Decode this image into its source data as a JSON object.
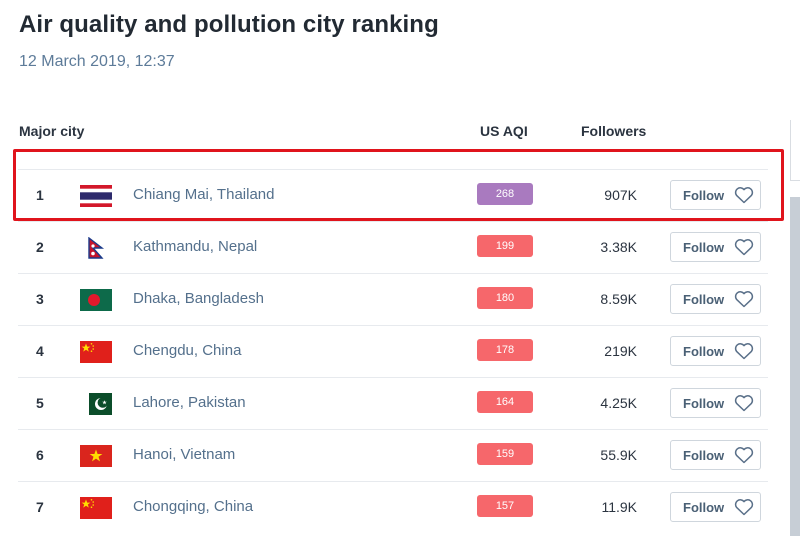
{
  "page": {
    "title": "Air quality and pollution city ranking",
    "timestamp": "12 March 2019, 12:37"
  },
  "columns": {
    "city": "Major city",
    "aqi": "US AQI",
    "followers": "Followers"
  },
  "rows": [
    {
      "rank": "1",
      "flag": "thailand-flag",
      "city": "Chiang Mai, Thailand",
      "aqi": "268",
      "aqi_color": "#a97abf",
      "followers": "907K",
      "follow_label": "Follow"
    },
    {
      "rank": "2",
      "flag": "nepal-flag",
      "city": "Kathmandu, Nepal",
      "aqi": "199",
      "aqi_color": "#f6676b",
      "followers": "3.38K",
      "follow_label": "Follow"
    },
    {
      "rank": "3",
      "flag": "bangladesh-flag",
      "city": "Dhaka, Bangladesh",
      "aqi": "180",
      "aqi_color": "#f6676b",
      "followers": "8.59K",
      "follow_label": "Follow"
    },
    {
      "rank": "4",
      "flag": "china-flag",
      "city": "Chengdu, China",
      "aqi": "178",
      "aqi_color": "#f6676b",
      "followers": "219K",
      "follow_label": "Follow"
    },
    {
      "rank": "5",
      "flag": "pakistan-flag",
      "city": "Lahore, Pakistan",
      "aqi": "164",
      "aqi_color": "#f6676b",
      "followers": "4.25K",
      "follow_label": "Follow"
    },
    {
      "rank": "6",
      "flag": "vietnam-flag",
      "city": "Hanoi, Vietnam",
      "aqi": "159",
      "aqi_color": "#f6676b",
      "followers": "55.9K",
      "follow_label": "Follow"
    },
    {
      "rank": "7",
      "flag": "china-flag",
      "city": "Chongqing, China",
      "aqi": "157",
      "aqi_color": "#f6676b",
      "followers": "11.9K",
      "follow_label": "Follow"
    }
  ],
  "highlight_color": "#e0141c"
}
